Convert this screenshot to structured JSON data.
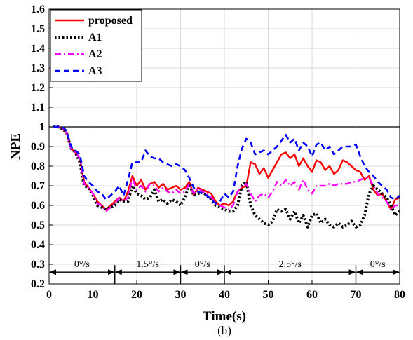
{
  "chart_data": {
    "type": "line",
    "title": "",
    "caption": "(b)",
    "xlabel": "Time(s)",
    "ylabel": "NPE",
    "xlim": [
      0,
      80
    ],
    "ylim": [
      0.2,
      1.6
    ],
    "xticks": [
      "0",
      "10",
      "20",
      "30",
      "40",
      "50",
      "60",
      "70",
      "80"
    ],
    "yticks": [
      "0.2",
      "0.3",
      "0.4",
      "0.5",
      "0.6",
      "0.7",
      "0.8",
      "0.9",
      "1",
      "1.1",
      "1.2",
      "1.3",
      "1.4",
      "1.5",
      "1.6"
    ],
    "grid": true,
    "legend_position": "top-left",
    "reference_line": {
      "y": 1.0,
      "color": "#000000"
    },
    "segments": [
      {
        "label": "0°/s",
        "x0": 0,
        "x1": 15
      },
      {
        "label": "1.5°/s",
        "x0": 15,
        "x1": 30
      },
      {
        "label": "0°/s",
        "x0": 30,
        "x1": 40
      },
      {
        "label": "2.5°/s",
        "x0": 40,
        "x1": 70
      },
      {
        "label": "0°/s",
        "x0": 70,
        "x1": 80
      }
    ],
    "segment_arrow_y": 0.26,
    "segment_label_y": 0.285,
    "series": [
      {
        "name": "proposed",
        "color": "#ff0000",
        "style": "solid",
        "x": [
          1,
          2,
          3,
          4,
          5,
          6,
          7,
          8,
          9,
          10,
          11,
          12,
          13,
          14,
          15,
          16,
          17,
          18,
          19,
          20,
          21,
          22,
          23,
          24,
          25,
          26,
          27,
          28,
          29,
          30,
          31,
          32,
          33,
          34,
          35,
          36,
          37,
          38,
          39,
          40,
          41,
          42,
          43,
          44,
          45,
          46,
          47,
          48,
          49,
          50,
          51,
          52,
          53,
          54,
          55,
          56,
          57,
          58,
          59,
          60,
          61,
          62,
          63,
          64,
          65,
          66,
          67,
          68,
          69,
          70,
          71,
          72,
          73,
          74,
          75,
          76,
          77,
          78,
          79,
          80
        ],
        "y": [
          1.0,
          1.0,
          0.99,
          0.97,
          0.89,
          0.87,
          0.84,
          0.72,
          0.69,
          0.66,
          0.62,
          0.6,
          0.58,
          0.6,
          0.62,
          0.64,
          0.62,
          0.67,
          0.75,
          0.7,
          0.73,
          0.68,
          0.71,
          0.72,
          0.69,
          0.71,
          0.68,
          0.69,
          0.7,
          0.68,
          0.69,
          0.72,
          0.65,
          0.69,
          0.68,
          0.67,
          0.66,
          0.62,
          0.6,
          0.61,
          0.6,
          0.62,
          0.67,
          0.69,
          0.7,
          0.82,
          0.81,
          0.76,
          0.79,
          0.74,
          0.78,
          0.82,
          0.86,
          0.87,
          0.84,
          0.86,
          0.8,
          0.84,
          0.8,
          0.77,
          0.83,
          0.82,
          0.78,
          0.8,
          0.76,
          0.78,
          0.83,
          0.82,
          0.8,
          0.78,
          0.77,
          0.73,
          0.75,
          0.68,
          0.65,
          0.66,
          0.62,
          0.58,
          0.63,
          0.64
        ]
      },
      {
        "name": "A1",
        "color": "#000000",
        "style": "dotted",
        "x": [
          1,
          2,
          3,
          4,
          5,
          6,
          7,
          8,
          9,
          10,
          11,
          12,
          13,
          14,
          15,
          16,
          17,
          18,
          19,
          20,
          21,
          22,
          23,
          24,
          25,
          26,
          27,
          28,
          29,
          30,
          31,
          32,
          33,
          34,
          35,
          36,
          37,
          38,
          39,
          40,
          41,
          42,
          43,
          44,
          45,
          46,
          47,
          48,
          49,
          50,
          51,
          52,
          53,
          54,
          55,
          56,
          57,
          58,
          59,
          60,
          61,
          62,
          63,
          64,
          65,
          66,
          67,
          68,
          69,
          70,
          71,
          72,
          73,
          74,
          75,
          76,
          77,
          78,
          79,
          80
        ],
        "y": [
          1.0,
          1.0,
          0.99,
          0.97,
          0.89,
          0.87,
          0.82,
          0.7,
          0.69,
          0.65,
          0.6,
          0.59,
          0.58,
          0.59,
          0.6,
          0.63,
          0.62,
          0.62,
          0.7,
          0.66,
          0.65,
          0.63,
          0.64,
          0.68,
          0.62,
          0.63,
          0.61,
          0.63,
          0.62,
          0.6,
          0.64,
          0.71,
          0.65,
          0.66,
          0.67,
          0.65,
          0.63,
          0.6,
          0.59,
          0.58,
          0.57,
          0.57,
          0.6,
          0.7,
          0.72,
          0.6,
          0.55,
          0.53,
          0.51,
          0.5,
          0.52,
          0.58,
          0.57,
          0.58,
          0.53,
          0.57,
          0.51,
          0.55,
          0.49,
          0.55,
          0.56,
          0.51,
          0.53,
          0.5,
          0.49,
          0.51,
          0.49,
          0.5,
          0.52,
          0.49,
          0.5,
          0.55,
          0.66,
          0.7,
          0.68,
          0.66,
          0.64,
          0.6,
          0.55,
          0.57
        ]
      },
      {
        "name": "A2",
        "color": "#ff00ff",
        "style": "dashdot",
        "x": [
          1,
          2,
          3,
          4,
          5,
          6,
          7,
          8,
          9,
          10,
          11,
          12,
          13,
          14,
          15,
          16,
          17,
          18,
          19,
          20,
          21,
          22,
          23,
          24,
          25,
          26,
          27,
          28,
          29,
          30,
          31,
          32,
          33,
          34,
          35,
          36,
          37,
          38,
          39,
          40,
          41,
          42,
          43,
          44,
          45,
          46,
          47,
          48,
          49,
          50,
          51,
          52,
          53,
          54,
          55,
          56,
          57,
          58,
          59,
          60,
          61,
          62,
          63,
          64,
          65,
          66,
          67,
          68,
          69,
          70,
          71,
          72,
          73,
          74,
          75,
          76,
          77,
          78,
          79,
          80
        ],
        "y": [
          1.0,
          1.0,
          0.99,
          0.97,
          0.89,
          0.87,
          0.84,
          0.71,
          0.69,
          0.66,
          0.61,
          0.6,
          0.57,
          0.59,
          0.61,
          0.64,
          0.62,
          0.64,
          0.74,
          0.68,
          0.7,
          0.67,
          0.71,
          0.7,
          0.67,
          0.69,
          0.67,
          0.66,
          0.68,
          0.66,
          0.67,
          0.71,
          0.66,
          0.69,
          0.67,
          0.66,
          0.64,
          0.61,
          0.6,
          0.59,
          0.58,
          0.6,
          0.67,
          0.7,
          0.71,
          0.66,
          0.62,
          0.65,
          0.66,
          0.64,
          0.67,
          0.72,
          0.7,
          0.73,
          0.7,
          0.72,
          0.68,
          0.73,
          0.68,
          0.66,
          0.7,
          0.7,
          0.7,
          0.71,
          0.7,
          0.71,
          0.71,
          0.71,
          0.72,
          0.72,
          0.73,
          0.74,
          0.74,
          0.7,
          0.66,
          0.64,
          0.62,
          0.58,
          0.6,
          0.6
        ]
      },
      {
        "name": "A3",
        "color": "#0000ff",
        "style": "dashed",
        "x": [
          1,
          2,
          3,
          4,
          5,
          6,
          7,
          8,
          9,
          10,
          11,
          12,
          13,
          14,
          15,
          16,
          17,
          18,
          19,
          20,
          21,
          22,
          23,
          24,
          25,
          26,
          27,
          28,
          29,
          30,
          31,
          32,
          33,
          34,
          35,
          36,
          37,
          38,
          39,
          40,
          41,
          42,
          43,
          44,
          45,
          46,
          47,
          48,
          49,
          50,
          51,
          52,
          53,
          54,
          55,
          56,
          57,
          58,
          59,
          60,
          61,
          62,
          63,
          64,
          65,
          66,
          67,
          68,
          69,
          70,
          71,
          72,
          73,
          74,
          75,
          76,
          77,
          78,
          79,
          80
        ],
        "y": [
          1.0,
          1.0,
          1.0,
          0.98,
          0.9,
          0.88,
          0.86,
          0.75,
          0.72,
          0.7,
          0.67,
          0.66,
          0.63,
          0.65,
          0.67,
          0.7,
          0.65,
          0.73,
          0.82,
          0.82,
          0.82,
          0.88,
          0.85,
          0.84,
          0.84,
          0.82,
          0.81,
          0.8,
          0.81,
          0.8,
          0.78,
          0.74,
          0.69,
          0.67,
          0.66,
          0.65,
          0.63,
          0.61,
          0.62,
          0.66,
          0.64,
          0.67,
          0.8,
          0.89,
          0.94,
          0.92,
          0.86,
          0.87,
          0.88,
          0.86,
          0.88,
          0.9,
          0.93,
          0.96,
          0.92,
          0.94,
          0.88,
          0.92,
          0.9,
          0.85,
          0.91,
          0.92,
          0.88,
          0.9,
          0.86,
          0.88,
          0.9,
          0.9,
          0.9,
          0.91,
          0.85,
          0.8,
          0.77,
          0.75,
          0.72,
          0.7,
          0.68,
          0.64,
          0.63,
          0.65
        ]
      }
    ]
  }
}
